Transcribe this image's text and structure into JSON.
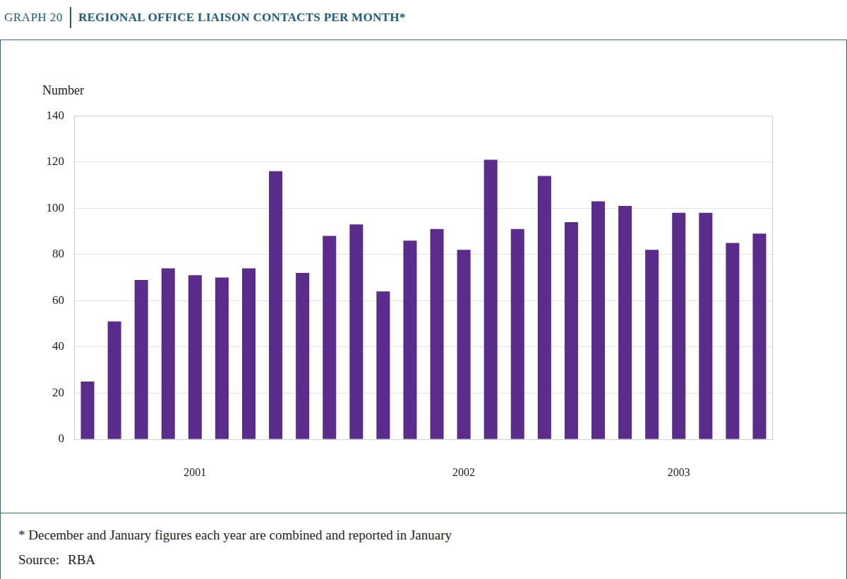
{
  "chart_data": {
    "type": "bar",
    "label": "GRAPH 20",
    "title": "REGIONAL OFFICE LIAISON CONTACTS PER MONTH*",
    "y_label": "Number",
    "categories": [
      null,
      null,
      null,
      null,
      "2001",
      null,
      null,
      null,
      null,
      null,
      null,
      null,
      null,
      null,
      "2002",
      null,
      null,
      null,
      null,
      null,
      null,
      null,
      "2003",
      null,
      null,
      null
    ],
    "values": [
      25,
      51,
      69,
      74,
      71,
      70,
      74,
      116,
      72,
      88,
      93,
      64,
      86,
      91,
      82,
      121,
      91,
      114,
      94,
      103,
      101,
      82,
      98,
      98,
      85,
      89
    ],
    "color": "#5a2d8c",
    "ylim": [
      0,
      140
    ],
    "yticks": [
      0,
      20,
      40,
      60,
      80,
      100,
      120,
      140
    ],
    "grid": true,
    "footnote": "*  December and January figures each year are combined and reported in January",
    "source_label": "Source:",
    "source": "RBA"
  }
}
